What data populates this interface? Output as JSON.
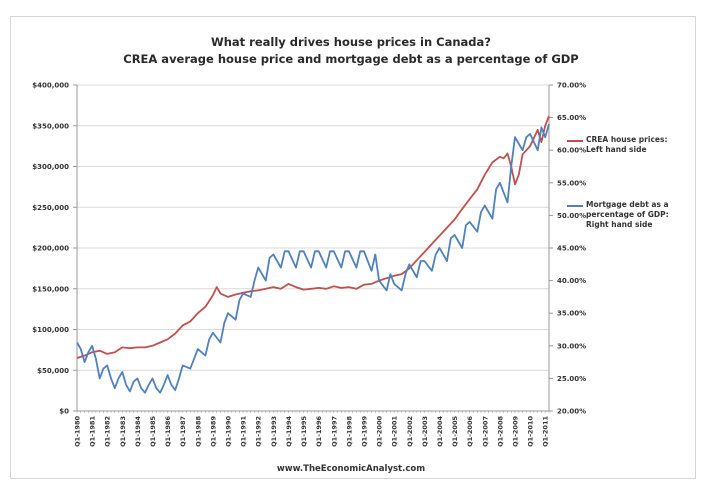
{
  "chart_data": {
    "type": "line",
    "title": "What really drives house prices in Canada?",
    "subtitle": "CREA average house price and mortgage debt as a percentage of GDP",
    "source": "www.TheEconomicAnalyst.com",
    "x_tick_labels": [
      "Q1-1980",
      "Q1-1981",
      "Q1-1982",
      "Q1-1983",
      "Q1-1984",
      "Q1-1985",
      "Q1-1986",
      "Q1-1987",
      "Q1-1988",
      "Q1-1989",
      "Q1-1990",
      "Q1-1991",
      "Q1-1992",
      "Q1-1993",
      "Q1-1994",
      "Q1-1995",
      "Q1-1996",
      "Q1-1997",
      "Q1-1998",
      "Q1-1999",
      "Q1-2000",
      "Q1-2001",
      "Q1-2002",
      "Q1-2003",
      "Q1-2004",
      "Q1-2005",
      "Q1-2006",
      "Q1-2007",
      "Q1-2008",
      "Q1-2009",
      "Q1-2010",
      "Q1-2011"
    ],
    "x_range": [
      1980,
      2011.25
    ],
    "y_left": {
      "label": "",
      "ticks": [
        "$0",
        "$50,000",
        "$100,000",
        "$150,000",
        "$200,000",
        "$250,000",
        "$300,000",
        "$350,000",
        "$400,000"
      ],
      "range": [
        0,
        400000
      ]
    },
    "y_right": {
      "label": "",
      "ticks": [
        "20.00%",
        "25.00%",
        "30.00%",
        "35.00%",
        "40.00%",
        "45.00%",
        "50.00%",
        "55.00%",
        "60.00%",
        "65.00%",
        "70.00%"
      ],
      "range": [
        20,
        70
      ]
    },
    "grid": true,
    "legend_position": "right",
    "series": [
      {
        "name": "CREA house prices: Left hand side",
        "axis": "left",
        "color": "#c0504d",
        "x": [
          1980,
          1980.5,
          1981,
          1981.5,
          1982,
          1982.5,
          1983,
          1983.5,
          1984,
          1984.5,
          1985,
          1985.5,
          1986,
          1986.5,
          1987,
          1987.5,
          1988,
          1988.5,
          1989,
          1989.25,
          1989.5,
          1990,
          1990.5,
          1991,
          1991.5,
          1992,
          1992.5,
          1993,
          1993.5,
          1994,
          1994.5,
          1995,
          1995.5,
          1996,
          1996.5,
          1997,
          1997.5,
          1998,
          1998.5,
          1999,
          1999.5,
          2000,
          2000.5,
          2001,
          2001.5,
          2002,
          2002.5,
          2003,
          2003.5,
          2004,
          2004.5,
          2005,
          2005.5,
          2006,
          2006.5,
          2007,
          2007.5,
          2008,
          2008.25,
          2008.5,
          2008.75,
          2009,
          2009.25,
          2009.5,
          2010,
          2010.5,
          2010.75,
          2011,
          2011.25
        ],
        "values": [
          65000,
          68000,
          72000,
          74000,
          70000,
          72000,
          78000,
          77000,
          78000,
          78000,
          80000,
          84000,
          88000,
          95000,
          105000,
          110000,
          120000,
          128000,
          142000,
          152000,
          144000,
          140000,
          143000,
          145000,
          147000,
          148000,
          150000,
          152000,
          150000,
          156000,
          152000,
          149000,
          150000,
          151000,
          150000,
          153000,
          151000,
          152000,
          150000,
          155000,
          156000,
          160000,
          163000,
          166000,
          168000,
          175000,
          185000,
          195000,
          205000,
          215000,
          225000,
          235000,
          248000,
          260000,
          272000,
          290000,
          305000,
          312000,
          310000,
          316000,
          300000,
          278000,
          290000,
          315000,
          325000,
          345000,
          330000,
          350000,
          362000
        ]
      },
      {
        "name": "Mortgage debt as a percentage of GDP: Right hand side",
        "axis": "right",
        "color": "#4f81bd",
        "x": [
          1980,
          1980.25,
          1980.5,
          1980.75,
          1981,
          1981.25,
          1981.5,
          1981.75,
          1982,
          1982.25,
          1982.5,
          1982.75,
          1983,
          1983.25,
          1983.5,
          1983.75,
          1984,
          1984.25,
          1984.5,
          1984.75,
          1985,
          1985.25,
          1985.5,
          1985.75,
          1986,
          1986.25,
          1986.5,
          1986.75,
          1987,
          1987.5,
          1987.75,
          1988,
          1988.5,
          1988.75,
          1989,
          1989.5,
          1989.75,
          1990,
          1990.5,
          1990.75,
          1991,
          1991.5,
          1991.75,
          1992,
          1992.5,
          1992.75,
          1993,
          1993.5,
          1993.75,
          1994,
          1994.5,
          1994.75,
          1995,
          1995.5,
          1995.75,
          1996,
          1996.5,
          1996.75,
          1997,
          1997.5,
          1997.75,
          1998,
          1998.5,
          1998.75,
          1999,
          1999.5,
          1999.75,
          2000,
          2000.5,
          2000.75,
          2001,
          2001.5,
          2001.75,
          2002,
          2002.5,
          2002.75,
          2003,
          2003.5,
          2003.75,
          2004,
          2004.5,
          2004.75,
          2005,
          2005.5,
          2005.75,
          2006,
          2006.5,
          2006.75,
          2007,
          2007.5,
          2007.75,
          2008,
          2008.5,
          2008.75,
          2009,
          2009.5,
          2009.75,
          2010,
          2010.5,
          2010.75,
          2011,
          2011.25
        ],
        "values": [
          30.5,
          29.5,
          27.5,
          29.0,
          30.0,
          28.0,
          25.0,
          26.5,
          27.0,
          25.0,
          23.5,
          25.0,
          26.0,
          24.0,
          23.0,
          24.5,
          25.0,
          23.5,
          22.8,
          24.0,
          25.0,
          23.5,
          22.8,
          24.0,
          25.5,
          24.0,
          23.2,
          25.0,
          27.0,
          26.5,
          28.0,
          29.5,
          28.5,
          31.0,
          32.0,
          30.5,
          33.5,
          35.0,
          34.0,
          37.0,
          38.0,
          37.5,
          40.0,
          42.0,
          40.0,
          43.5,
          44.0,
          42.0,
          44.5,
          44.5,
          42.0,
          44.5,
          44.5,
          42.0,
          44.5,
          44.5,
          42.0,
          44.5,
          44.5,
          42.0,
          44.5,
          44.5,
          42.0,
          44.5,
          44.5,
          41.5,
          44.0,
          40.0,
          38.5,
          41.0,
          39.5,
          38.5,
          41.0,
          42.5,
          40.5,
          43.0,
          43.0,
          41.5,
          44.0,
          45.0,
          43.0,
          46.5,
          47.0,
          45.0,
          48.5,
          49.0,
          47.5,
          50.5,
          51.5,
          49.5,
          54.0,
          55.0,
          52.0,
          57.5,
          62.0,
          60.0,
          62.0,
          62.5,
          60.0,
          63.5,
          62.0,
          64.0
        ]
      }
    ]
  }
}
